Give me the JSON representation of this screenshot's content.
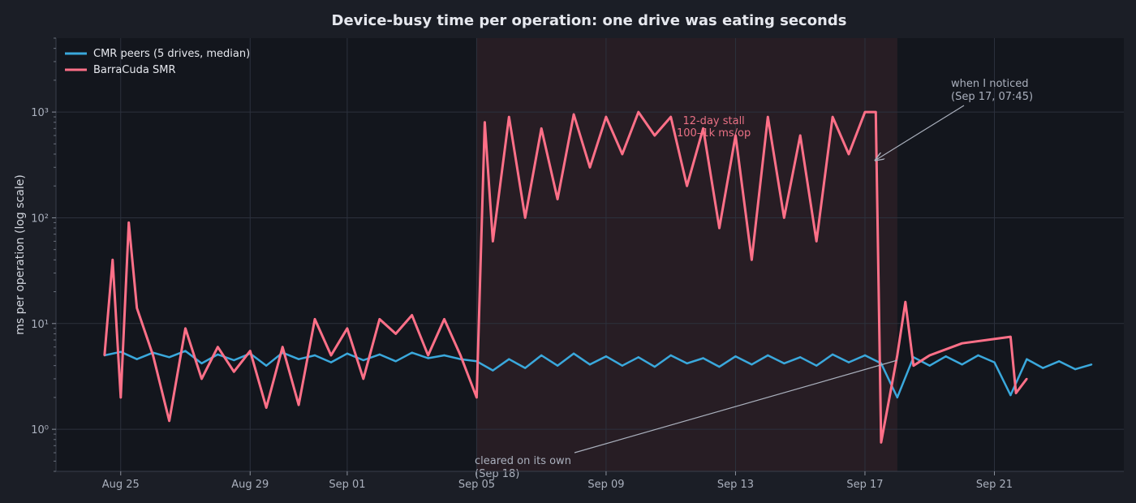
{
  "chart_data": {
    "type": "line",
    "title": "Device-busy time per operation: one drive was eating seconds",
    "ylabel": "ms per operation (log scale)",
    "xlabel": "",
    "yscale": "log",
    "ylim": [
      0.4,
      5000
    ],
    "xlim": [
      "2024-08-23 00:00",
      "2024-09-25 00:00"
    ],
    "x_tick_labels": [
      "Aug 25",
      "Aug 29",
      "Sep 01",
      "Sep 05",
      "Sep 09",
      "Sep 13",
      "Sep 17",
      "Sep 21"
    ],
    "x_tick_dates": [
      "2024-08-25",
      "2024-08-29",
      "2024-09-01",
      "2024-09-05",
      "2024-09-09",
      "2024-09-13",
      "2024-09-17",
      "2024-09-21"
    ],
    "y_tick_labels": [
      "10⁰",
      "10¹",
      "10²",
      "10³"
    ],
    "y_tick_values": [
      1,
      10,
      100,
      1000
    ],
    "grid": true,
    "legend_placement": "top-left",
    "highlight_band": {
      "start": "2024-09-05 00:00",
      "end": "2024-09-18 00:00",
      "label_lines": [
        "12-day stall",
        "100–1k ms/op"
      ]
    },
    "series": [
      {
        "name": "CMR peers (5 drives, median)",
        "color": "#3aa8dc",
        "points": [
          [
            "2024-08-24 12:00",
            5.0
          ],
          [
            "2024-08-25 00:00",
            5.4
          ],
          [
            "2024-08-25 12:00",
            4.6
          ],
          [
            "2024-08-26 00:00",
            5.3
          ],
          [
            "2024-08-26 12:00",
            4.8
          ],
          [
            "2024-08-27 00:00",
            5.5
          ],
          [
            "2024-08-27 12:00",
            4.2
          ],
          [
            "2024-08-28 00:00",
            5.1
          ],
          [
            "2024-08-28 12:00",
            4.5
          ],
          [
            "2024-08-29 00:00",
            5.2
          ],
          [
            "2024-08-29 12:00",
            4.0
          ],
          [
            "2024-08-30 00:00",
            5.3
          ],
          [
            "2024-08-30 12:00",
            4.6
          ],
          [
            "2024-08-31 00:00",
            5.0
          ],
          [
            "2024-08-31 12:00",
            4.3
          ],
          [
            "2024-09-01 00:00",
            5.2
          ],
          [
            "2024-09-01 12:00",
            4.5
          ],
          [
            "2024-09-02 00:00",
            5.1
          ],
          [
            "2024-09-02 12:00",
            4.4
          ],
          [
            "2024-09-03 00:00",
            5.3
          ],
          [
            "2024-09-03 12:00",
            4.7
          ],
          [
            "2024-09-04 00:00",
            5.0
          ],
          [
            "2024-09-04 12:00",
            4.6
          ],
          [
            "2024-09-05 00:00",
            4.4
          ],
          [
            "2024-09-05 12:00",
            3.6
          ],
          [
            "2024-09-06 00:00",
            4.6
          ],
          [
            "2024-09-06 12:00",
            3.8
          ],
          [
            "2024-09-07 00:00",
            5.0
          ],
          [
            "2024-09-07 12:00",
            4.0
          ],
          [
            "2024-09-08 00:00",
            5.2
          ],
          [
            "2024-09-08 12:00",
            4.1
          ],
          [
            "2024-09-09 00:00",
            4.9
          ],
          [
            "2024-09-09 12:00",
            4.0
          ],
          [
            "2024-09-10 00:00",
            4.8
          ],
          [
            "2024-09-10 12:00",
            3.9
          ],
          [
            "2024-09-11 00:00",
            5.0
          ],
          [
            "2024-09-11 12:00",
            4.2
          ],
          [
            "2024-09-12 00:00",
            4.7
          ],
          [
            "2024-09-12 12:00",
            3.9
          ],
          [
            "2024-09-13 00:00",
            4.9
          ],
          [
            "2024-09-13 12:00",
            4.1
          ],
          [
            "2024-09-14 00:00",
            5.0
          ],
          [
            "2024-09-14 12:00",
            4.2
          ],
          [
            "2024-09-15 00:00",
            4.8
          ],
          [
            "2024-09-15 12:00",
            4.0
          ],
          [
            "2024-09-16 00:00",
            5.1
          ],
          [
            "2024-09-16 12:00",
            4.3
          ],
          [
            "2024-09-17 00:00",
            5.0
          ],
          [
            "2024-09-17 12:00",
            4.2
          ],
          [
            "2024-09-18 00:00",
            2.0
          ],
          [
            "2024-09-18 12:00",
            4.8
          ],
          [
            "2024-09-19 00:00",
            4.0
          ],
          [
            "2024-09-19 12:00",
            4.9
          ],
          [
            "2024-09-20 00:00",
            4.1
          ],
          [
            "2024-09-20 12:00",
            5.0
          ],
          [
            "2024-09-21 00:00",
            4.3
          ],
          [
            "2024-09-21 12:00",
            2.1
          ],
          [
            "2024-09-22 00:00",
            4.6
          ],
          [
            "2024-09-22 12:00",
            3.8
          ],
          [
            "2024-09-23 00:00",
            4.4
          ],
          [
            "2024-09-23 12:00",
            3.7
          ],
          [
            "2024-09-24 00:00",
            4.1
          ]
        ]
      },
      {
        "name": "BarraCuda SMR",
        "color": "#ff7088",
        "points": [
          [
            "2024-08-24 12:00",
            5.0
          ],
          [
            "2024-08-24 18:00",
            40
          ],
          [
            "2024-08-25 00:00",
            2.0
          ],
          [
            "2024-08-25 06:00",
            90
          ],
          [
            "2024-08-25 12:00",
            14
          ],
          [
            "2024-08-26 00:00",
            5.0
          ],
          [
            "2024-08-26 12:00",
            1.2
          ],
          [
            "2024-08-27 00:00",
            9.0
          ],
          [
            "2024-08-27 12:00",
            3.0
          ],
          [
            "2024-08-28 00:00",
            6.0
          ],
          [
            "2024-08-28 12:00",
            3.5
          ],
          [
            "2024-08-29 00:00",
            5.5
          ],
          [
            "2024-08-29 12:00",
            1.6
          ],
          [
            "2024-08-30 00:00",
            6.0
          ],
          [
            "2024-08-30 12:00",
            1.7
          ],
          [
            "2024-08-31 00:00",
            11
          ],
          [
            "2024-08-31 12:00",
            5.0
          ],
          [
            "2024-09-01 00:00",
            9.0
          ],
          [
            "2024-09-01 12:00",
            3.0
          ],
          [
            "2024-09-02 00:00",
            11
          ],
          [
            "2024-09-02 12:00",
            8.0
          ],
          [
            "2024-09-03 00:00",
            12
          ],
          [
            "2024-09-03 12:00",
            5.0
          ],
          [
            "2024-09-04 00:00",
            11
          ],
          [
            "2024-09-04 12:00",
            5.0
          ],
          [
            "2024-09-05 00:00",
            2.0
          ],
          [
            "2024-09-05 06:00",
            800
          ],
          [
            "2024-09-05 12:00",
            60
          ],
          [
            "2024-09-06 00:00",
            900
          ],
          [
            "2024-09-06 12:00",
            100
          ],
          [
            "2024-09-07 00:00",
            700
          ],
          [
            "2024-09-07 12:00",
            150
          ],
          [
            "2024-09-08 00:00",
            950
          ],
          [
            "2024-09-08 12:00",
            300
          ],
          [
            "2024-09-09 00:00",
            900
          ],
          [
            "2024-09-09 12:00",
            400
          ],
          [
            "2024-09-10 00:00",
            1000
          ],
          [
            "2024-09-10 12:00",
            600
          ],
          [
            "2024-09-11 00:00",
            900
          ],
          [
            "2024-09-11 12:00",
            200
          ],
          [
            "2024-09-12 00:00",
            700
          ],
          [
            "2024-09-12 12:00",
            80
          ],
          [
            "2024-09-13 00:00",
            600
          ],
          [
            "2024-09-13 12:00",
            40
          ],
          [
            "2024-09-14 00:00",
            900
          ],
          [
            "2024-09-14 12:00",
            100
          ],
          [
            "2024-09-15 00:00",
            600
          ],
          [
            "2024-09-15 12:00",
            60
          ],
          [
            "2024-09-16 00:00",
            900
          ],
          [
            "2024-09-16 12:00",
            400
          ],
          [
            "2024-09-17 00:00",
            1000
          ],
          [
            "2024-09-17 08:00",
            1000
          ],
          [
            "2024-09-17 12:00",
            0.75
          ],
          [
            "2024-09-18 00:00",
            5.0
          ],
          [
            "2024-09-18 06:00",
            16
          ],
          [
            "2024-09-18 12:00",
            4.0
          ],
          [
            "2024-09-19 00:00",
            5.0
          ],
          [
            "2024-09-20 00:00",
            6.5
          ],
          [
            "2024-09-21 12:00",
            7.5
          ],
          [
            "2024-09-21 16:00",
            2.2
          ],
          [
            "2024-09-22 00:00",
            3.0
          ]
        ]
      }
    ],
    "annotations": [
      {
        "label_lines": [
          "when I noticed",
          "(Sep 17, 07:45)"
        ],
        "target": [
          "2024-09-17 07:45",
          350
        ]
      },
      {
        "label_lines": [
          "cleared on its own",
          "(Sep 18)"
        ],
        "target": [
          "2024-09-18 00:00",
          4.5
        ]
      }
    ]
  }
}
